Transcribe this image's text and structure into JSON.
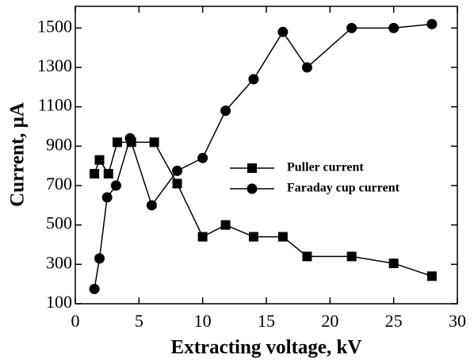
{
  "chart_data": {
    "type": "line",
    "x_label": "Extracting voltage, kV",
    "y_label": "Current, μA",
    "xlim": [
      0,
      30
    ],
    "xticks": [
      0,
      5,
      10,
      15,
      20,
      25,
      30
    ],
    "ylim": [
      100,
      1610
    ],
    "yticks": [
      100,
      300,
      500,
      700,
      900,
      1100,
      1300,
      1500
    ],
    "legend": "center right",
    "series": [
      {
        "name": "Puller current",
        "color": "#000000",
        "marker": "square",
        "x": [
          1.5,
          1.9,
          2.6,
          3.3,
          4.4,
          6.2,
          8,
          10,
          11.8,
          14,
          16.3,
          18.2,
          21.7,
          25,
          28
        ],
        "values": [
          760,
          830,
          760,
          920,
          920,
          920,
          710,
          440,
          500,
          440,
          440,
          340,
          340,
          305,
          240
        ]
      },
      {
        "name": "Faraday cup current",
        "color": "#000000",
        "marker": "circle",
        "x": [
          1.5,
          1.9,
          2.5,
          3.2,
          4.3,
          6,
          8,
          10,
          11.8,
          14,
          16.3,
          18.2,
          21.7,
          25,
          28
        ],
        "values": [
          175,
          330,
          640,
          700,
          940,
          600,
          775,
          840,
          1080,
          1240,
          1480,
          1300,
          1500,
          1500,
          1520
        ]
      }
    ]
  }
}
